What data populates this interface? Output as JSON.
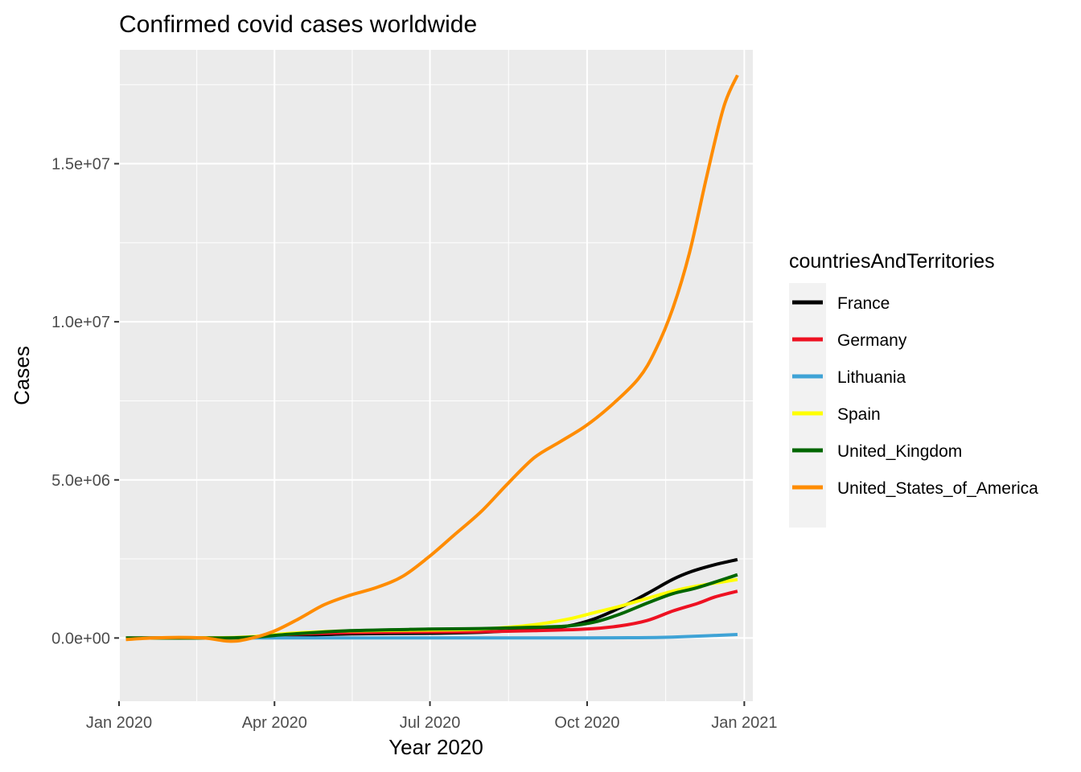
{
  "chart_data": {
    "type": "line",
    "title": "Confirmed covid cases worldwide",
    "xlabel": "Year 2020",
    "ylabel": "Cases",
    "x_type": "date",
    "xlim": [
      "2020-01-01",
      "2021-01-06"
    ],
    "ylim": [
      -2000000,
      18600000
    ],
    "x_ticks": [
      {
        "value": "2020-01-01",
        "label": "Jan 2020"
      },
      {
        "value": "2020-04-01",
        "label": "Apr 2020"
      },
      {
        "value": "2020-07-01",
        "label": "Jul 2020"
      },
      {
        "value": "2020-10-01",
        "label": "Oct 2020"
      },
      {
        "value": "2021-01-01",
        "label": "Jan 2021"
      }
    ],
    "y_ticks": [
      {
        "value": 0,
        "label": "0.0e+00"
      },
      {
        "value": 5000000,
        "label": "5.0e+06"
      },
      {
        "value": 10000000,
        "label": "1.0e+07"
      },
      {
        "value": 15000000,
        "label": "1.5e+07"
      }
    ],
    "grid": true,
    "legend": {
      "title": "countriesAndTerritories",
      "position": "right"
    },
    "series": [
      {
        "name": "France",
        "color": "#000000",
        "points": [
          [
            "2020-01-05",
            0
          ],
          [
            "2020-02-15",
            5000
          ],
          [
            "2020-03-20",
            20000
          ],
          [
            "2020-04-15",
            80000
          ],
          [
            "2020-05-15",
            130000
          ],
          [
            "2020-06-30",
            150000
          ],
          [
            "2020-07-31",
            180000
          ],
          [
            "2020-08-31",
            280000
          ],
          [
            "2020-09-20",
            380000
          ],
          [
            "2020-10-05",
            600000
          ],
          [
            "2020-10-20",
            950000
          ],
          [
            "2020-11-05",
            1400000
          ],
          [
            "2020-11-20",
            1850000
          ],
          [
            "2020-12-01",
            2100000
          ],
          [
            "2020-12-15",
            2320000
          ],
          [
            "2020-12-28",
            2480000
          ]
        ]
      },
      {
        "name": "Germany",
        "color": "#ee1122",
        "points": [
          [
            "2020-01-05",
            0
          ],
          [
            "2020-03-10",
            10000
          ],
          [
            "2020-04-10",
            110000
          ],
          [
            "2020-05-15",
            170000
          ],
          [
            "2020-06-30",
            190000
          ],
          [
            "2020-07-31",
            200000
          ],
          [
            "2020-08-31",
            230000
          ],
          [
            "2020-09-30",
            280000
          ],
          [
            "2020-10-20",
            380000
          ],
          [
            "2020-11-05",
            550000
          ],
          [
            "2020-11-20",
            850000
          ],
          [
            "2020-12-05",
            1100000
          ],
          [
            "2020-12-15",
            1300000
          ],
          [
            "2020-12-28",
            1480000
          ]
        ]
      },
      {
        "name": "Lithuania",
        "color": "#3fa3d6",
        "points": [
          [
            "2020-01-05",
            0
          ],
          [
            "2020-06-30",
            2000
          ],
          [
            "2020-09-30",
            5000
          ],
          [
            "2020-10-31",
            10000
          ],
          [
            "2020-11-20",
            30000
          ],
          [
            "2020-12-10",
            70000
          ],
          [
            "2020-12-28",
            110000
          ]
        ]
      },
      {
        "name": "Spain",
        "color": "#ffff00",
        "points": [
          [
            "2020-01-05",
            0
          ],
          [
            "2020-03-10",
            20000
          ],
          [
            "2020-04-10",
            150000
          ],
          [
            "2020-05-10",
            220000
          ],
          [
            "2020-06-30",
            250000
          ],
          [
            "2020-07-31",
            280000
          ],
          [
            "2020-08-31",
            420000
          ],
          [
            "2020-09-20",
            600000
          ],
          [
            "2020-10-05",
            800000
          ],
          [
            "2020-10-20",
            1000000
          ],
          [
            "2020-11-05",
            1250000
          ],
          [
            "2020-11-20",
            1480000
          ],
          [
            "2020-12-05",
            1650000
          ],
          [
            "2020-12-28",
            1850000
          ]
        ]
      },
      {
        "name": "United_Kingdom",
        "color": "#006600",
        "points": [
          [
            "2020-01-05",
            0
          ],
          [
            "2020-03-10",
            10000
          ],
          [
            "2020-04-10",
            120000
          ],
          [
            "2020-05-15",
            230000
          ],
          [
            "2020-06-30",
            280000
          ],
          [
            "2020-07-31",
            300000
          ],
          [
            "2020-08-31",
            340000
          ],
          [
            "2020-09-20",
            380000
          ],
          [
            "2020-10-05",
            500000
          ],
          [
            "2020-10-20",
            750000
          ],
          [
            "2020-11-05",
            1100000
          ],
          [
            "2020-11-20",
            1400000
          ],
          [
            "2020-12-05",
            1600000
          ],
          [
            "2020-12-28",
            2000000
          ]
        ]
      },
      {
        "name": "United_States_of_America",
        "color": "#ff8c00",
        "points": [
          [
            "2020-01-05",
            -50000
          ],
          [
            "2020-01-20",
            0
          ],
          [
            "2020-02-05",
            20000
          ],
          [
            "2020-02-20",
            0
          ],
          [
            "2020-03-05",
            -100000
          ],
          [
            "2020-03-15",
            -50000
          ],
          [
            "2020-03-31",
            200000
          ],
          [
            "2020-04-15",
            600000
          ],
          [
            "2020-04-30",
            1050000
          ],
          [
            "2020-05-15",
            1350000
          ],
          [
            "2020-05-31",
            1600000
          ],
          [
            "2020-06-15",
            1950000
          ],
          [
            "2020-06-30",
            2550000
          ],
          [
            "2020-07-15",
            3250000
          ],
          [
            "2020-07-31",
            4000000
          ],
          [
            "2020-08-15",
            4850000
          ],
          [
            "2020-08-31",
            5700000
          ],
          [
            "2020-09-15",
            6200000
          ],
          [
            "2020-09-30",
            6700000
          ],
          [
            "2020-10-15",
            7350000
          ],
          [
            "2020-10-31",
            8200000
          ],
          [
            "2020-11-10",
            9100000
          ],
          [
            "2020-11-20",
            10400000
          ],
          [
            "2020-11-30",
            12200000
          ],
          [
            "2020-12-10",
            14600000
          ],
          [
            "2020-12-20",
            16800000
          ],
          [
            "2020-12-28",
            17800000
          ]
        ]
      }
    ]
  }
}
